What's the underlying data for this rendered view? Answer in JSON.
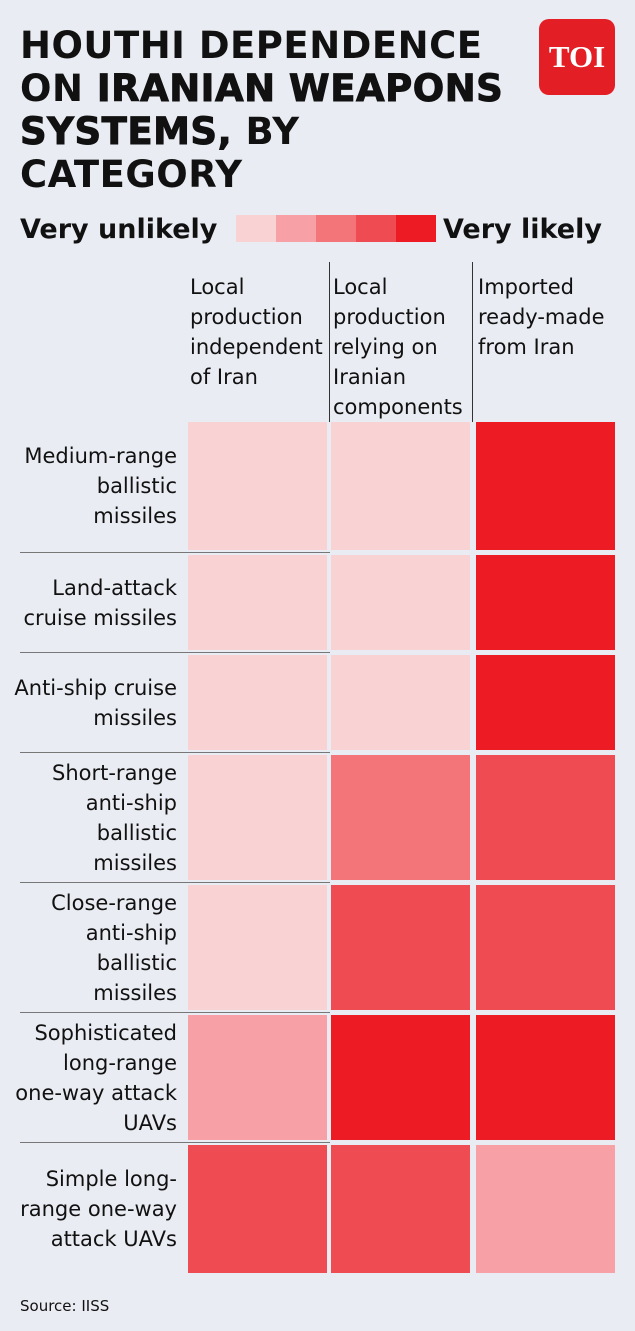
{
  "chart_data": {
    "type": "heatmap",
    "title_parts": [
      "HOUTHI DEPENDENCE ON",
      "IRANIAN WEAPONS SYSTEMS,",
      "BY CATEGORY"
    ],
    "logo": "TOI",
    "legend_labels": [
      "Very unlikely",
      "Very likely"
    ],
    "colorscale": [
      "#f9d3d4",
      "#f7a1a6",
      "#f3757a",
      "#ef4b52",
      "#ed1c24"
    ],
    "columns": [
      "Local production independent of Iran",
      "Local production relying on Iranian components",
      "Imported ready-made from Iran"
    ],
    "rows": [
      "Medium-range ballistic missiles",
      "Land-attack cruise missiles",
      "Anti-ship cruise missiles",
      "Short-range anti-ship ballistic missiles",
      "Close-range anti-ship ballistic missiles",
      "Sophisticated long-range one-way attack UAVs",
      "Simple long-range one-way attack UAVs"
    ],
    "values": [
      [
        1,
        1,
        5
      ],
      [
        1,
        1,
        5
      ],
      [
        1,
        1,
        5
      ],
      [
        1,
        3,
        4
      ],
      [
        1,
        4,
        4
      ],
      [
        2,
        5,
        5
      ],
      [
        4,
        4,
        2
      ]
    ],
    "source": "Source: IISS"
  }
}
